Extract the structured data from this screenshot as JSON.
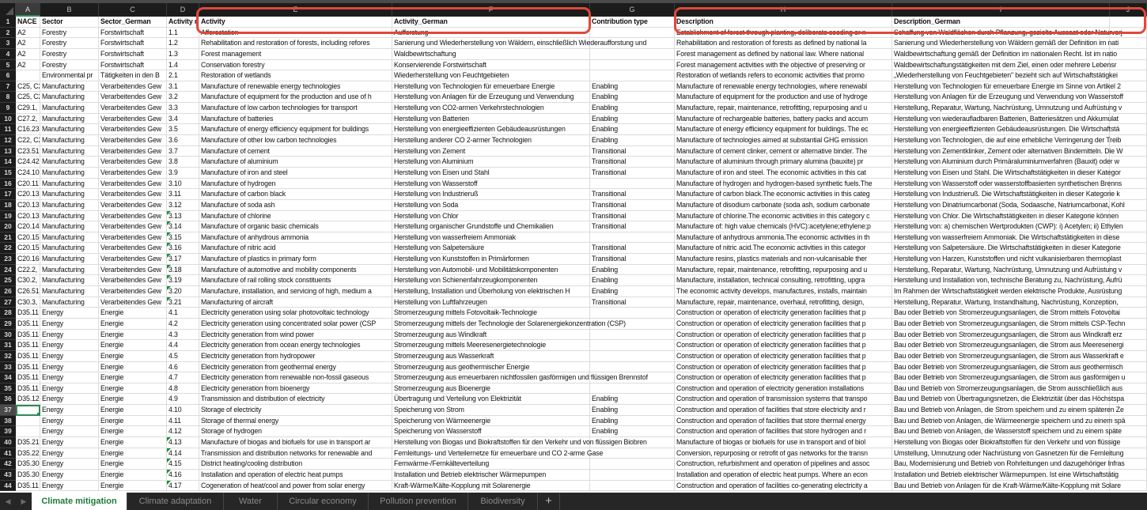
{
  "column_letters": [
    "A",
    "B",
    "C",
    "D",
    "E",
    "F",
    "G",
    "H",
    "I",
    "J"
  ],
  "selected_cell": "A37",
  "annotation_color": "#e0483a",
  "accent_color": "#1f7a3a",
  "flagged_rows_column_D": [
    19,
    20,
    21,
    22,
    23,
    24,
    25,
    26,
    27,
    40,
    41,
    42,
    43,
    44
  ],
  "rows": [
    {
      "n": "1",
      "c": [
        "NACE",
        "Sector",
        "Sector_German",
        "Activity n",
        "Activity",
        "Activity_German",
        "Contribution type",
        "Description",
        "Description_German",
        ""
      ]
    },
    {
      "n": "2",
      "c": [
        "A2",
        "Forestry",
        "Forstwirtschaft",
        "1.1",
        "Afforestation",
        "Aufforstung",
        "",
        "Establishment of forest through planting, deliberate seeding or n",
        "Schaffung von Waldflächen durch Pflanzung, gezielte Aussaat oder Naturverj",
        ""
      ]
    },
    {
      "n": "3",
      "c": [
        "A2",
        "Forestry",
        "Forstwirtschaft",
        "1.2",
        "Rehabilitation and restoration of forests, including refores",
        "Sanierung und Wiederherstellung von Wäldern, einschließlich Wiederaufforstung und",
        "",
        "Rehabilitation and restoration of forests as defined by national la",
        "Sanierung und Wiederherstellung von Wäldern gemäß der Definition im nati",
        ""
      ]
    },
    {
      "n": "4",
      "c": [
        "A2",
        "Forestry",
        "Forstwirtschaft",
        "1.3",
        "Forest management",
        "Waldbewirtschaftung",
        "",
        "Forest management as defined by national law. Where national",
        "Waldbewirtschaftung gemäß der Definition im nationalen Recht. Ist im natio",
        ""
      ]
    },
    {
      "n": "5",
      "c": [
        "A2",
        "Forestry",
        "Forstwirtschaft",
        "1.4",
        "Conservation forestry",
        "Konservierende Forstwirtschaft",
        "",
        "Forest management activities with the objective of preserving or",
        "Waldbewirtschaftungstätigkeiten mit dem Ziel, einen oder mehrere Lebensr",
        ""
      ]
    },
    {
      "n": "6",
      "c": [
        "",
        "Environmental pr",
        "Tätigkeiten in den B",
        "2.1",
        "Restoration of wetlands",
        "Wiederherstellung von Feuchtgebieten",
        "",
        "Restoration of wetlands refers to economic activities that promo",
        "„Wiederherstellung von Feuchtgebieten\" bezieht sich auf Wirtschaftstätigkei",
        ""
      ]
    },
    {
      "n": "7",
      "c": [
        "C25, C2",
        "Manufacturing",
        "Verarbeitendes Gew",
        "3.1",
        "Manufacture of renewable energy technologies",
        "Herstellung von Technologien für erneuerbare Energie",
        "Enabling",
        "Manufacture of renewable energy technologies, where renewabl",
        "Herstellung von Technologien für erneuerbare Energie im Sinne von Artikel 2",
        ""
      ]
    },
    {
      "n": "8",
      "c": [
        "C25, C2",
        "Manufacturing",
        "Verarbeitendes Gew",
        "3.2",
        "Manufacture of equipment for the production and use of h",
        "Herstellung von Anlagen für die Erzeugung und Verwendung",
        "Enabling",
        "Manufacture of equipment for the production and use of hydroge",
        "Herstellung von Anlagen für die Erzeugung und Verwendung von Wasserstoff",
        ""
      ]
    },
    {
      "n": "9",
      "c": [
        "C29.1,",
        "Manufacturing",
        "Verarbeitendes Gew",
        "3.3",
        "Manufacture of low carbon technologies for transport",
        "Herstellung von CO2-armen Verkehrstechnologien",
        "Enabling",
        "Manufacture, repair, maintenance, retrofitting, repurposing and u",
        "Herstellung, Reparatur, Wartung, Nachrüstung, Umnutzung und Aufrüstung v",
        ""
      ]
    },
    {
      "n": "10",
      "c": [
        "C27.2,",
        "Manufacturing",
        "Verarbeitendes Gew",
        "3.4",
        "Manufacture of batteries",
        " Herstellung von Batterien",
        "Enabling",
        "Manufacture of rechargeable batteries, battery packs and accum",
        "Herstellung von wiederaufladbaren Batterien, Batteriesätzen und Akkumulat",
        ""
      ]
    },
    {
      "n": "11",
      "c": [
        "C16.23",
        "Manufacturing",
        "Verarbeitendes Gew",
        "3.5",
        "Manufacture of energy efficiency equipment for buildings",
        "Herstellung von energieeffizienten Gebäudeausrüstungen",
        "Enabling",
        "Manufacture of energy efficiency equipment for buildings. The ec",
        "Herstellung von energieeffizienten Gebäudeausrüstungen. Die Wirtschaftstä",
        ""
      ]
    },
    {
      "n": "12",
      "c": [
        "C22, C2",
        "Manufacturing",
        "Verarbeitendes Gew",
        "3.6",
        "Manufacture of other low carbon technologies",
        "Herstellung anderer CO 2-armer Technologien",
        "Enabling",
        "Manufacture of technologies aimed at substantial GHG emission",
        "Herstellung von Technologien, die auf eine erhebliche Verringerung der Treib",
        ""
      ]
    },
    {
      "n": "13",
      "c": [
        "C23.51",
        "Manufacturing",
        "Verarbeitendes Gew",
        "3.7",
        "Manufacture of cement",
        "Herstellung von Zement",
        "Transitional",
        "Manufacture of cement clinker, cement or alternative binder. The",
        "Herstellung von Zementklinker, Zement oder alternativen Bindemitteln. Die W",
        ""
      ]
    },
    {
      "n": "14",
      "c": [
        "C24.42",
        "Manufacturing",
        "Verarbeitendes Gew",
        "3.8",
        "Manufacture of aluminium",
        "Herstellung von Aluminium",
        "Transitional",
        "Manufacture of aluminium through primary alumina (bauxite) pr",
        "Herstellung von Aluminium durch Primäraluminiumverfahren (Bauxit) oder w",
        ""
      ]
    },
    {
      "n": "15",
      "c": [
        "C24.10",
        "Manufacturing",
        "Verarbeitendes Gew",
        "3.9",
        "Manufacture of iron and steel",
        "Herstellung von Eisen und Stahl",
        "Transitional",
        "Manufacture of iron and steel. The economic activities in this cat",
        "Herstellung von Eisen und Stahl. Die Wirtschaftstätigkeiten in dieser Kategor",
        ""
      ]
    },
    {
      "n": "16",
      "c": [
        "C20.11",
        "Manufacturing",
        "Verarbeitendes Gew",
        "3.10",
        "Manufacture of hydrogen",
        "Herstellung von Wasserstoff",
        "",
        "Manufacture of hydrogen and hydrogen-based synthetic fuels.The",
        "Herstellung von Wasserstoff oder wasserstoffbasierten synthetischen Brenns",
        ""
      ]
    },
    {
      "n": "17",
      "c": [
        "C20.13",
        "Manufacturing",
        "Verarbeitendes Gew",
        "3.11",
        "Manufacture of carbon black",
        "Herstellung von Industrieruß",
        "Transitional",
        "Manufacture of carbon black.The economic activities in this categ",
        "Herstellung von Industrieruß. Die Wirtschaftstätigkeiten in dieser Kategorie k",
        ""
      ]
    },
    {
      "n": "18",
      "c": [
        "C20.13",
        "Manufacturing",
        "Verarbeitendes Gew",
        "3.12",
        "Manufacture of soda ash",
        "Herstellung von Soda",
        "Transitional",
        "Manufacture of disodium carbonate (soda ash, sodium carbonate",
        "Herstellung von Dinatriumcarbonat (Soda, Sodaasche, Natriumcarbonat, Kohl",
        ""
      ]
    },
    {
      "n": "19",
      "c": [
        "C20.13",
        "Manufacturing",
        "Verarbeitendes Gew",
        "3.13",
        "Manufacture of chlorine",
        "Herstellung von Chlor",
        "Transitional",
        "Manufacture of chlorine.The economic activities in this category c",
        "Herstellung von Chlor. Die Wirtschaftstätigkeiten in dieser Kategorie können",
        ""
      ]
    },
    {
      "n": "20",
      "c": [
        "C20.14",
        "Manufacturing",
        "Verarbeitendes Gew",
        "3.14",
        "Manufacture of organic basic chemicals",
        "Herstellung organischer Grundstoffe und Chemikalien",
        "Transitional",
        "Manufacture of: high value chemicals (HVC):acetylene;ethylene;p",
        "Herstellung von: a) chemischen Wertprodukten (CWP): i) Acetylen; ii) Ethylen",
        ""
      ]
    },
    {
      "n": "21",
      "c": [
        "C20.15",
        "Manufacturing",
        "Verarbeitendes Gew",
        "3.15",
        "Manufacture of anhydrous ammonia",
        "Herstellung von wasserfreiem Ammoniak",
        "",
        "Manufacture of anhydrous ammonia.The economic activities in th",
        "Herstellung von wasserfreiem Ammoniak. Die Wirtschaftstätigkeiten in diese",
        ""
      ]
    },
    {
      "n": "22",
      "c": [
        "C20.15",
        "Manufacturing",
        "Verarbeitendes Gew",
        "3.16",
        "Manufacture of nitric acid",
        "Herstellung von Salpetersäure",
        "Transitional",
        "Manufacture of nitric acid.The economic activities in this categor",
        "Herstellung von Salpetersäure. Die Wirtschaftstätigkeiten in dieser Kategorie",
        ""
      ]
    },
    {
      "n": "23",
      "c": [
        "C20.16",
        "Manufacturing",
        "Verarbeitendes Gew",
        "3.17",
        "Manufacture of plastics in primary form",
        "Herstellung von Kunststoffen in Primärformen",
        "Transitional",
        "Manufacture resins, plastics materials and non-vulcanisable ther",
        "Herstellung von Harzen, Kunststoffen und nicht vulkanisierbaren thermoplast",
        ""
      ]
    },
    {
      "n": "24",
      "c": [
        "C22.2,",
        "Manufacturing",
        "Verarbeitendes Gew",
        "3.18",
        "Manufacture of automotive and mobility components",
        "Herstellung von Automobil- und Mobilitätskomponenten",
        "Enabling",
        "Manufacture, repair, maintenance, retrofitting, repurposing and u",
        "Herstellung, Reparatur, Wartung, Nachrüstung, Umnutzung und Aufrüstung v",
        ""
      ]
    },
    {
      "n": "25",
      "c": [
        "C30.2,",
        "Manufacturing",
        "Verarbeitendes Gew",
        "3.19",
        "Manufacture of rail rolling stock constituents",
        "Herstellung von Schienenfahrzeugkomponenten",
        "Enabling",
        "Manufacture, installation, technical consulting, retrofitting, upgra",
        "Herstellung und Installation von, technische Beratung zu, Nachrüstung, Aufrü",
        ""
      ]
    },
    {
      "n": "26",
      "c": [
        "C26.51",
        "Manufacturing",
        "Verarbeitendes Gew",
        "3.20",
        "Manufacture, installation, and servicing of high, medium a",
        "Herstellung, Installation und Überholung von elektrischen H",
        "Enabling",
        "The economic activity develops, manufactures, installs, maintain",
        "Im Rahmen der Wirtschaftstätigkeit werden elektrische Produkte, Ausrüstung",
        ""
      ]
    },
    {
      "n": "27",
      "c": [
        "C30.3,",
        "Manufacturing",
        "Verarbeitendes Gew",
        "3.21",
        "Manufacturing of aircraft",
        "Herstellung von Luftfahrzeugen",
        "Transitional",
        "Manufacture, repair, maintenance, overhaul, retrofitting, design,",
        "Herstellung, Reparatur, Wartung, Instandhaltung, Nachrüstung, Konzeption,",
        ""
      ]
    },
    {
      "n": "28",
      "c": [
        "D35.11",
        "Energy",
        "Energie",
        "4.1",
        "Electricity generation using solar photovoltaic technology",
        "Stromerzeugung mittels Fotovoltaik-Technologie",
        "",
        "Construction or operation of electricity generation facilities that p",
        "Bau oder Betrieb von Stromerzeugungsanlagen, die Strom mittels Fotovoltai",
        ""
      ]
    },
    {
      "n": "29",
      "c": [
        "D35.11",
        "Energy",
        "Energie",
        "4.2",
        "Electricity generation using concentrated solar power (CSP",
        "Stromerzeugung mittels der Technologie der Solarenergiekonzentration (CSP)",
        "",
        "Construction or operation of electricity generation facilities that p",
        "Bau oder Betrieb von Stromerzeugungsanlagen, die Strom mittels CSP-Techn",
        ""
      ]
    },
    {
      "n": "30",
      "c": [
        "D35.11",
        "Energy",
        "Energie",
        "4.3",
        "Electricity generation from wind power",
        "Stromerzeugung aus Windkraft",
        "",
        "Construction or operation of electricity generation facilities that p",
        "Bau oder Betrieb von Stromerzeugungsanlagen, die Strom aus Windkraft erz",
        ""
      ]
    },
    {
      "n": "31",
      "c": [
        "D35.11",
        "Energy",
        "Energie",
        "4.4",
        "Electricity generation from ocean energy technologies",
        "Stromerzeugung mittels Meeresenergietechnologie",
        "",
        "Construction or operation of electricity generation facilities that p",
        "Bau oder Betrieb von Stromerzeugungsanlagen, die Strom aus Meeresenergi",
        ""
      ]
    },
    {
      "n": "32",
      "c": [
        "D35.11",
        "Energy",
        "Energie",
        "4.5",
        "Electricity generation from hydropower",
        "Stromerzeugung aus Wasserkraft",
        "",
        "Construction or operation of electricity generation facilities that p",
        "Bau oder Betrieb von Stromerzeugungsanlagen, die Strom aus Wasserkraft e",
        ""
      ]
    },
    {
      "n": "33",
      "c": [
        "D35.11",
        "Energy",
        "Energie",
        "4.6",
        "Electricity generation from geothermal energy",
        "Stromerzeugung aus geothermischer Energie",
        "",
        "Construction or operation of electricity generation facilities that p",
        "Bau oder Betrieb von Stromerzeugungsanlagen, die Strom aus geothermisch",
        ""
      ]
    },
    {
      "n": "34",
      "c": [
        "D35.11",
        "Energy",
        "Energie",
        "4.7",
        "Electricity generation from renewable non-fossil gaseous",
        "Stromerzeugung aus erneuerbaren nichtfossilen gasförmigen und flüssigen Brennstof",
        "",
        "Construction or operation of electricity generation facilities that p",
        "Bau oder Betrieb von Stromerzeugungsanlagen, die Strom aus gasförmigen u",
        ""
      ]
    },
    {
      "n": "35",
      "c": [
        "D35.11",
        "Energy",
        "Energie",
        "4.8",
        "Electricity generation from bioenergy",
        "Stromerzeugung aus Bioenergie",
        "",
        "Construction and operation of electricity generation installations",
        "Bau und Betrieb von Stromerzeugungsanlagen, die Strom ausschließlich aus",
        ""
      ]
    },
    {
      "n": "36",
      "c": [
        "D35.12",
        "Energy",
        "Energie",
        "4.9",
        "Transmission and distribution of electricity",
        "Übertragung und Verteilung von Elektrizität",
        "Enabling",
        "Construction and operation of transmission systems that transpo",
        "Bau und Betrieb von Übertragungsnetzen, die Elektrizität über das Höchstspa",
        ""
      ]
    },
    {
      "n": "37",
      "c": [
        "",
        "Energy",
        "Energie",
        "4.10",
        "Storage of electricity",
        "Speicherung von Strom",
        "Enabling",
        "Construction and operation of facilities that store electricity and r",
        "Bau und Betrieb von Anlagen, die Strom speichern und zu einem späteren Ze",
        ""
      ]
    },
    {
      "n": "38",
      "c": [
        "",
        "Energy",
        "Energie",
        "4.11",
        "Storage of thermal energy",
        "Speicherung von Wärmeenergie",
        "Enabling",
        "Construction and operation of facilities that store thermal energy",
        "Bau und Betrieb von Anlagen, die Wärmeenergie speichern und zu einem spä",
        ""
      ]
    },
    {
      "n": "39",
      "c": [
        "",
        "Energy",
        "Energie",
        "4.12",
        "Storage of hydrogen",
        "Speicherung von Wasserstoff",
        "Enabling",
        "Construction and operation of facilities that store hydrogen and r",
        "Bau und Betrieb von Anlagen, die Wasserstoff speichern und zu einem späte",
        ""
      ]
    },
    {
      "n": "40",
      "c": [
        "D35.21",
        "Energy",
        "Energie",
        "4.13",
        "Manufacture of biogas and biofuels for use in transport ar",
        "Herstellung von Biogas und Biokraftstoffen für den Verkehr und von flüssigen Biobren",
        "",
        "Manufacture of biogas or biofuels for use in transport and of biol",
        "Herstellung von Biogas oder Biokraftstoffen für den Verkehr und von flüssige",
        ""
      ]
    },
    {
      "n": "41",
      "c": [
        "D35.22",
        "Energy",
        "Energie",
        "4.14",
        "Transmission and distribution networks for renewable and",
        "Fernleitungs- und Verteilernetze für erneuerbare und CO 2-arme Gase",
        "",
        "Conversion, repurposing or retrofit of gas networks for the transn",
        "Umstellung, Umnutzung oder Nachrüstung von Gasnetzen für die Fernleitung",
        ""
      ]
    },
    {
      "n": "42",
      "c": [
        "D35.30",
        "Energy",
        "Energie",
        "4.15",
        "District heating/cooling distribution",
        "Fernwärme-/Fernkälteverteilung",
        "",
        "Construction, refurbishment and operation of pipelines and assoc",
        "Bau, Modernisierung und Betrieb von Rohrleitungen und dazugehöriger Infras",
        ""
      ]
    },
    {
      "n": "43",
      "c": [
        "D35.30",
        "Energy",
        "Energie",
        "4.16",
        "Installation and operation of electric heat pumps",
        "Installation und Betrieb elektrischer Wärmepumpen",
        "",
        "Installation and operation of electric heat pumps. Where an econ",
        "Installation und Betrieb elektrischer Wärmepumpen. Ist eine Wirtschaftstätig",
        ""
      ]
    },
    {
      "n": "44",
      "c": [
        "D35.11",
        "Energy",
        "Energie",
        "4.17",
        "Cogeneration of heat/cool and power from solar energy",
        "Kraft-Wärme/Kälte-Kopplung mit Solarenergie",
        "",
        "Construction and operation of facilities co-generating electricity a",
        "Bau und Betrieb von Anlagen für die Kraft-Wärme/Kälte-Kopplung mit Solare",
        ""
      ]
    }
  ],
  "sheet_tabs": {
    "prev_icon": "◀",
    "next_icon": "▶",
    "tabs": [
      "Climate mitigation",
      "Climate adaptation",
      "Water",
      "Circular economy",
      "Pollution prevention",
      "Biodiversity"
    ],
    "active": "Climate mitigation",
    "add_label": "+"
  }
}
